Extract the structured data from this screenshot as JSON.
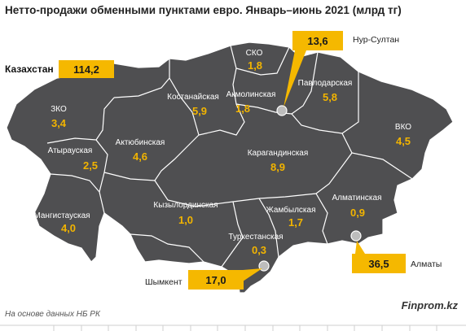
{
  "title": "Нетто-продажи обменными пунктами евро. Январь–июнь 2021 (млрд тг)",
  "country": {
    "label": "Казахстан",
    "value": "114,2"
  },
  "regions": [
    {
      "id": "zko",
      "name": "ЗКО",
      "value": "3,4"
    },
    {
      "id": "atyrau",
      "name": "Атырауская",
      "value": "2,5"
    },
    {
      "id": "mangystau",
      "name": "Мангистауская",
      "value": "4,0"
    },
    {
      "id": "aktobe",
      "name": "Актюбинская",
      "value": "4,6"
    },
    {
      "id": "kostanay",
      "name": "Костанайская",
      "value": "5,9"
    },
    {
      "id": "sko",
      "name": "СКО",
      "value": "1,8"
    },
    {
      "id": "akmola",
      "name": "Акмолинская",
      "value": "1,8"
    },
    {
      "id": "pavlodar",
      "name": "Павлодарская",
      "value": "5,8"
    },
    {
      "id": "vko",
      "name": "ВКО",
      "value": "4,5"
    },
    {
      "id": "karaganda",
      "name": "Карагандинская",
      "value": "8,9"
    },
    {
      "id": "kyzylorda",
      "name": "Кызылординская",
      "value": "1,0"
    },
    {
      "id": "zhambyl",
      "name": "Жамбылская",
      "value": "1,7"
    },
    {
      "id": "almaty_obl",
      "name": "Алматинская",
      "value": "0,9"
    },
    {
      "id": "turkestan",
      "name": "Туркестанская",
      "value": "0,3"
    }
  ],
  "cities": [
    {
      "id": "nur_sultan",
      "name": "Нур-Султан",
      "value": "13,6"
    },
    {
      "id": "almaty",
      "name": "Алматы",
      "value": "36,5"
    },
    {
      "id": "shymkent",
      "name": "Шымкент",
      "value": "17,0"
    }
  ],
  "colors": {
    "map_fill": "#4f4f51",
    "border": "#ffffff",
    "value_text": "#f2b400",
    "callout": "#f5b800"
  },
  "footer": {
    "source": "На основе данных НБ РК",
    "brand": "Finprom.kz"
  }
}
